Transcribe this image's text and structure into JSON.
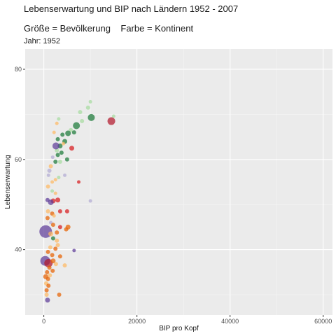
{
  "chart_data": {
    "type": "scatter",
    "title": "Lebenserwartung und BIP nach Ländern 1952 - 2007",
    "subtitle": "Größe = Bevölkerung    Farbe = Kontinent",
    "caption": "Jahr: 1952",
    "xlabel": "BIP pro Kopf",
    "ylabel": "Lebenserwartung",
    "xlim": [
      -4000,
      62000
    ],
    "ylim": [
      25.5,
      84.5
    ],
    "x_ticks": [
      {
        "value": 0,
        "label": "0"
      },
      {
        "value": 20000,
        "label": "20000"
      },
      {
        "value": 40000,
        "label": "40000"
      },
      {
        "value": 60000,
        "label": "60000"
      }
    ],
    "y_ticks": [
      {
        "value": 40,
        "label": "40"
      },
      {
        "value": 60,
        "label": "60"
      },
      {
        "value": 80,
        "label": "80"
      }
    ],
    "grid": true,
    "legend": "none",
    "colors": {
      "africa": "#e66101",
      "americas": "#fdb863",
      "asia": "#b2abd2",
      "europe": "#1b7837",
      "oceania": "#a6dba0",
      "asia_large": "#5e3c99",
      "red": "#d7191c",
      "crimson": "#b2182b"
    },
    "points": [
      {
        "x": 14500,
        "y": 68.5,
        "s": 5.5,
        "c": "crimson"
      },
      {
        "x": 10000,
        "y": 72.8,
        "s": 2.5,
        "c": "oceania"
      },
      {
        "x": 15000,
        "y": 69.6,
        "s": 2.5,
        "c": "oceania"
      },
      {
        "x": 9500,
        "y": 71.5,
        "s": 3,
        "c": "oceania"
      },
      {
        "x": 10200,
        "y": 69.3,
        "s": 5,
        "c": "europe"
      },
      {
        "x": 7000,
        "y": 67.5,
        "s": 5,
        "c": "europe"
      },
      {
        "x": 8200,
        "y": 68.5,
        "s": 3,
        "c": "oceania"
      },
      {
        "x": 7800,
        "y": 70.5,
        "s": 3,
        "c": "oceania"
      },
      {
        "x": 5800,
        "y": 66.5,
        "s": 3,
        "c": "oceania"
      },
      {
        "x": 5200,
        "y": 65.8,
        "s": 4,
        "c": "europe"
      },
      {
        "x": 6500,
        "y": 66.0,
        "s": 3,
        "c": "europe"
      },
      {
        "x": 4500,
        "y": 64.0,
        "s": 3.5,
        "c": "europe"
      },
      {
        "x": 3500,
        "y": 63.0,
        "s": 3.5,
        "c": "europe"
      },
      {
        "x": 3000,
        "y": 64.5,
        "s": 3,
        "c": "europe"
      },
      {
        "x": 4000,
        "y": 65.5,
        "s": 3,
        "c": "europe"
      },
      {
        "x": 3800,
        "y": 61.5,
        "s": 3,
        "c": "europe"
      },
      {
        "x": 3000,
        "y": 61.0,
        "s": 3,
        "c": "europe"
      },
      {
        "x": 2500,
        "y": 59.5,
        "s": 3,
        "c": "europe"
      },
      {
        "x": 3500,
        "y": 59.5,
        "s": 3,
        "c": "oceania"
      },
      {
        "x": 2800,
        "y": 62.0,
        "s": 3,
        "c": "oceania"
      },
      {
        "x": 5000,
        "y": 60.0,
        "s": 3,
        "c": "europe"
      },
      {
        "x": 6000,
        "y": 62.5,
        "s": 3.5,
        "c": "red"
      },
      {
        "x": 2200,
        "y": 66.0,
        "s": 2.5,
        "c": "americas"
      },
      {
        "x": 2800,
        "y": 68.0,
        "s": 2.5,
        "c": "americas"
      },
      {
        "x": 3200,
        "y": 69.0,
        "s": 2.5,
        "c": "oceania"
      },
      {
        "x": 4200,
        "y": 63.5,
        "s": 2.5,
        "c": "americas"
      },
      {
        "x": 2600,
        "y": 63.0,
        "s": 5,
        "c": "asia_large"
      },
      {
        "x": 1900,
        "y": 60.5,
        "s": 2.5,
        "c": "asia"
      },
      {
        "x": 1500,
        "y": 58.5,
        "s": 3,
        "c": "americas"
      },
      {
        "x": 1200,
        "y": 57.5,
        "s": 3,
        "c": "asia"
      },
      {
        "x": 1000,
        "y": 56.5,
        "s": 2.5,
        "c": "asia"
      },
      {
        "x": 1800,
        "y": 55.0,
        "s": 2.5,
        "c": "americas"
      },
      {
        "x": 2500,
        "y": 55.5,
        "s": 2.5,
        "c": "americas"
      },
      {
        "x": 3200,
        "y": 56.0,
        "s": 2.5,
        "c": "oceania"
      },
      {
        "x": 4500,
        "y": 56.5,
        "s": 2.5,
        "c": "asia"
      },
      {
        "x": 7500,
        "y": 55.0,
        "s": 2.5,
        "c": "red"
      },
      {
        "x": 900,
        "y": 54.0,
        "s": 3,
        "c": "americas"
      },
      {
        "x": 1800,
        "y": 53.0,
        "s": 2.5,
        "c": "oceania"
      },
      {
        "x": 2500,
        "y": 52.5,
        "s": 2.5,
        "c": "americas"
      },
      {
        "x": 10000,
        "y": 50.8,
        "s": 2.5,
        "c": "asia"
      },
      {
        "x": 800,
        "y": 51.0,
        "s": 3,
        "c": "asia_large"
      },
      {
        "x": 2000,
        "y": 50.8,
        "s": 3.5,
        "c": "red"
      },
      {
        "x": 1500,
        "y": 50.5,
        "s": 4,
        "c": "asia_large"
      },
      {
        "x": 3000,
        "y": 51.0,
        "s": 3.5,
        "c": "red"
      },
      {
        "x": 900,
        "y": 48.5,
        "s": 3,
        "c": "americas"
      },
      {
        "x": 1800,
        "y": 48.0,
        "s": 3,
        "c": "africa"
      },
      {
        "x": 3500,
        "y": 48.5,
        "s": 3,
        "c": "red"
      },
      {
        "x": 5000,
        "y": 48.5,
        "s": 3,
        "c": "red"
      },
      {
        "x": 2200,
        "y": 47.5,
        "s": 2.5,
        "c": "americas"
      },
      {
        "x": 800,
        "y": 47.0,
        "s": 3,
        "c": "africa"
      },
      {
        "x": 1500,
        "y": 46.0,
        "s": 2.5,
        "c": "asia"
      },
      {
        "x": 2000,
        "y": 45.5,
        "s": 3,
        "c": "africa"
      },
      {
        "x": 3500,
        "y": 45.0,
        "s": 3,
        "c": "red"
      },
      {
        "x": 4800,
        "y": 44.5,
        "s": 3,
        "c": "africa"
      },
      {
        "x": 5200,
        "y": 45.0,
        "s": 3.5,
        "c": "africa"
      },
      {
        "x": 400,
        "y": 44.0,
        "s": 9,
        "c": "asia_large"
      },
      {
        "x": 1500,
        "y": 43.5,
        "s": 3.5,
        "c": "americas"
      },
      {
        "x": 2800,
        "y": 43.8,
        "s": 3,
        "c": "africa"
      },
      {
        "x": 2000,
        "y": 42.5,
        "s": 3,
        "c": "europe"
      },
      {
        "x": 2800,
        "y": 42.0,
        "s": 3,
        "c": "americas"
      },
      {
        "x": 3000,
        "y": 41.0,
        "s": 3,
        "c": "americas"
      },
      {
        "x": 1400,
        "y": 40.5,
        "s": 3,
        "c": "americas"
      },
      {
        "x": 2500,
        "y": 40.2,
        "s": 3,
        "c": "africa"
      },
      {
        "x": 6500,
        "y": 39.8,
        "s": 2.5,
        "c": "asia_large"
      },
      {
        "x": 900,
        "y": 39.5,
        "s": 3,
        "c": "africa"
      },
      {
        "x": 1800,
        "y": 38.8,
        "s": 3,
        "c": "africa"
      },
      {
        "x": 3500,
        "y": 38.5,
        "s": 3,
        "c": "africa"
      },
      {
        "x": 300,
        "y": 37.5,
        "s": 7,
        "c": "asia_large"
      },
      {
        "x": 1000,
        "y": 37.0,
        "s": 6,
        "c": "crimson"
      },
      {
        "x": 2000,
        "y": 37.5,
        "s": 3.5,
        "c": "africa"
      },
      {
        "x": 2600,
        "y": 36.8,
        "s": 3,
        "c": "americas"
      },
      {
        "x": 4500,
        "y": 36.5,
        "s": 3,
        "c": "americas"
      },
      {
        "x": 1200,
        "y": 36.0,
        "s": 3,
        "c": "africa"
      },
      {
        "x": 700,
        "y": 35.0,
        "s": 3,
        "c": "africa"
      },
      {
        "x": 1900,
        "y": 35.3,
        "s": 3,
        "c": "africa"
      },
      {
        "x": 1300,
        "y": 34.3,
        "s": 3,
        "c": "americas"
      },
      {
        "x": 400,
        "y": 34.0,
        "s": 3.5,
        "c": "africa"
      },
      {
        "x": 900,
        "y": 33.5,
        "s": 3,
        "c": "africa"
      },
      {
        "x": 500,
        "y": 32.5,
        "s": 3,
        "c": "americas"
      },
      {
        "x": 1000,
        "y": 32.0,
        "s": 3,
        "c": "africa"
      },
      {
        "x": 600,
        "y": 31.0,
        "s": 3,
        "c": "africa"
      },
      {
        "x": 600,
        "y": 30.0,
        "s": 3,
        "c": "americas"
      },
      {
        "x": 3300,
        "y": 30.0,
        "s": 3,
        "c": "africa"
      },
      {
        "x": 800,
        "y": 28.8,
        "s": 3.5,
        "c": "asia_large"
      }
    ]
  }
}
